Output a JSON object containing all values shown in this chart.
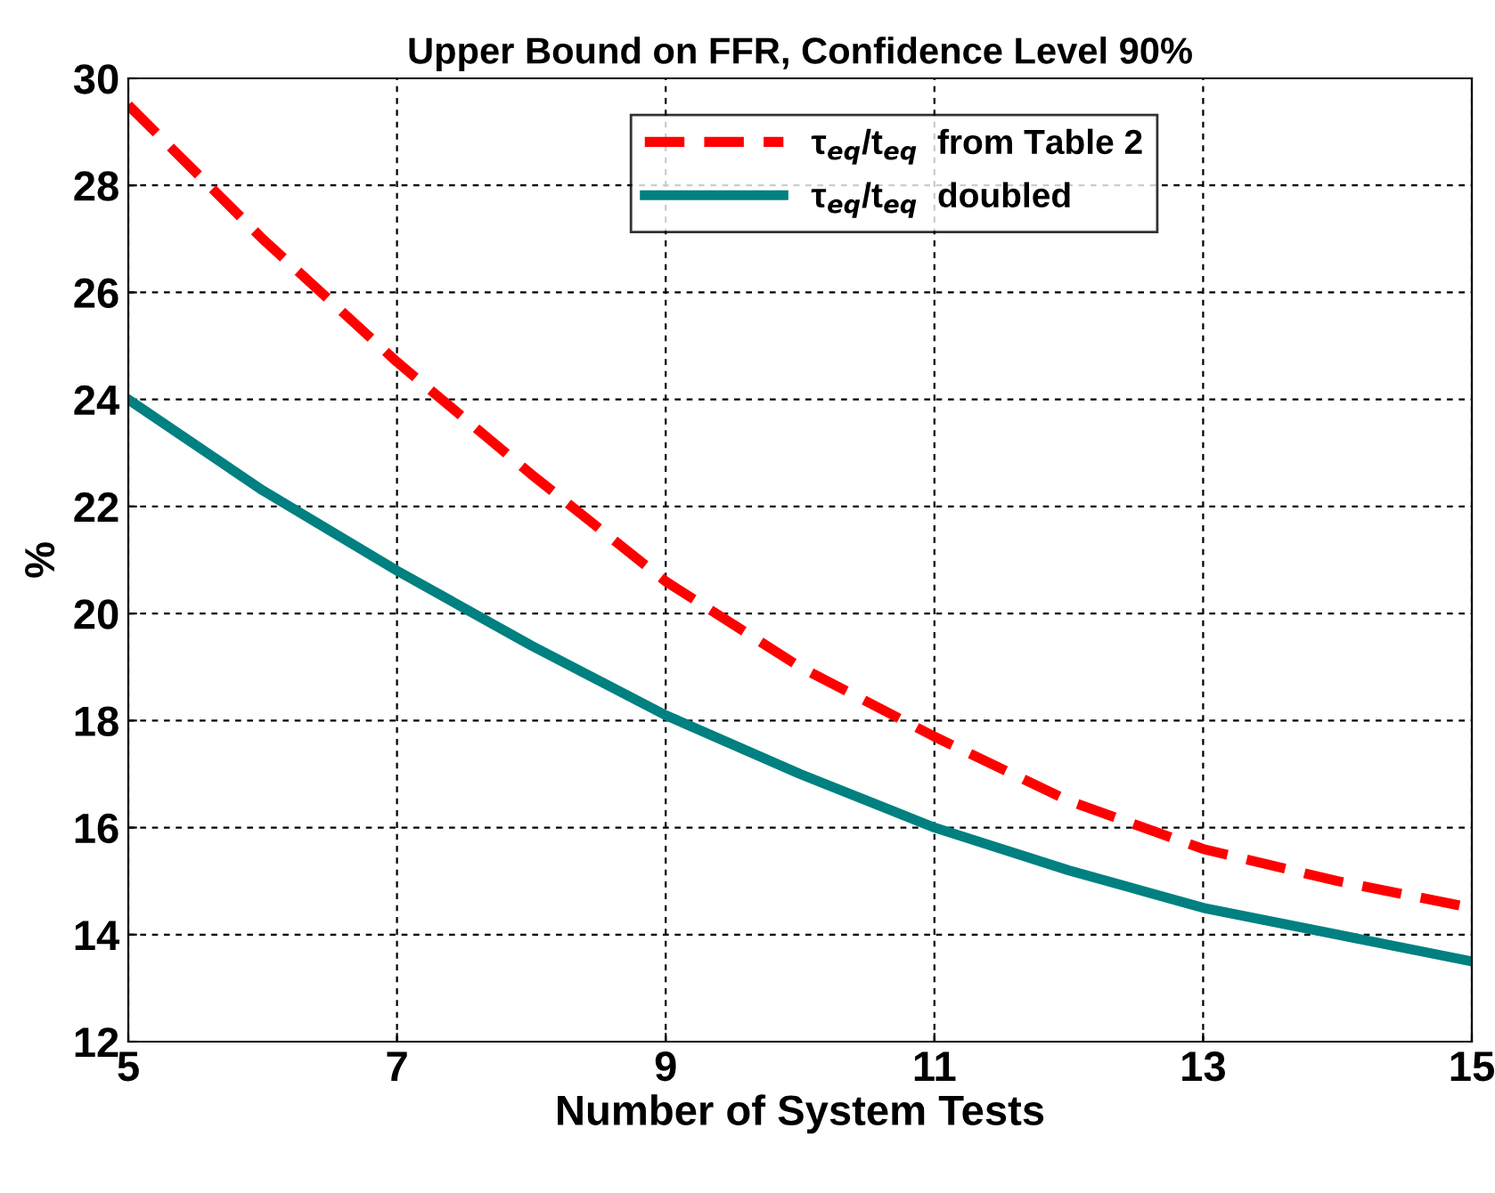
{
  "chart_data": {
    "type": "line",
    "title": "Upper Bound on FFR, Confidence Level 90%",
    "xlabel": "Number of System Tests",
    "ylabel": "%",
    "x": [
      5,
      6,
      7,
      8,
      9,
      10,
      11,
      12,
      13,
      14,
      15
    ],
    "series": [
      {
        "name": "τ$_{eq}$/t$_{eq}$  from Table 2",
        "color": "#ff0000",
        "line_style": "dashed",
        "values": [
          29.5,
          27.0,
          24.7,
          22.6,
          20.6,
          19.0,
          17.7,
          16.5,
          15.6,
          15.0,
          14.5
        ]
      },
      {
        "name": "τ$_{eq}$/t$_{eq}$  doubled",
        "color": "#008080",
        "line_style": "solid",
        "values": [
          24.0,
          22.3,
          20.8,
          19.4,
          18.1,
          17.0,
          16.0,
          15.2,
          14.5,
          14.0,
          13.5
        ]
      }
    ],
    "xlim": [
      5,
      15
    ],
    "xticks": [
      5,
      7,
      9,
      11,
      13,
      15
    ],
    "ylim": [
      12,
      30
    ],
    "yticks": [
      12,
      14,
      16,
      18,
      20,
      22,
      24,
      26,
      28,
      30
    ],
    "grid": true,
    "legend": "top",
    "marker": "none"
  }
}
